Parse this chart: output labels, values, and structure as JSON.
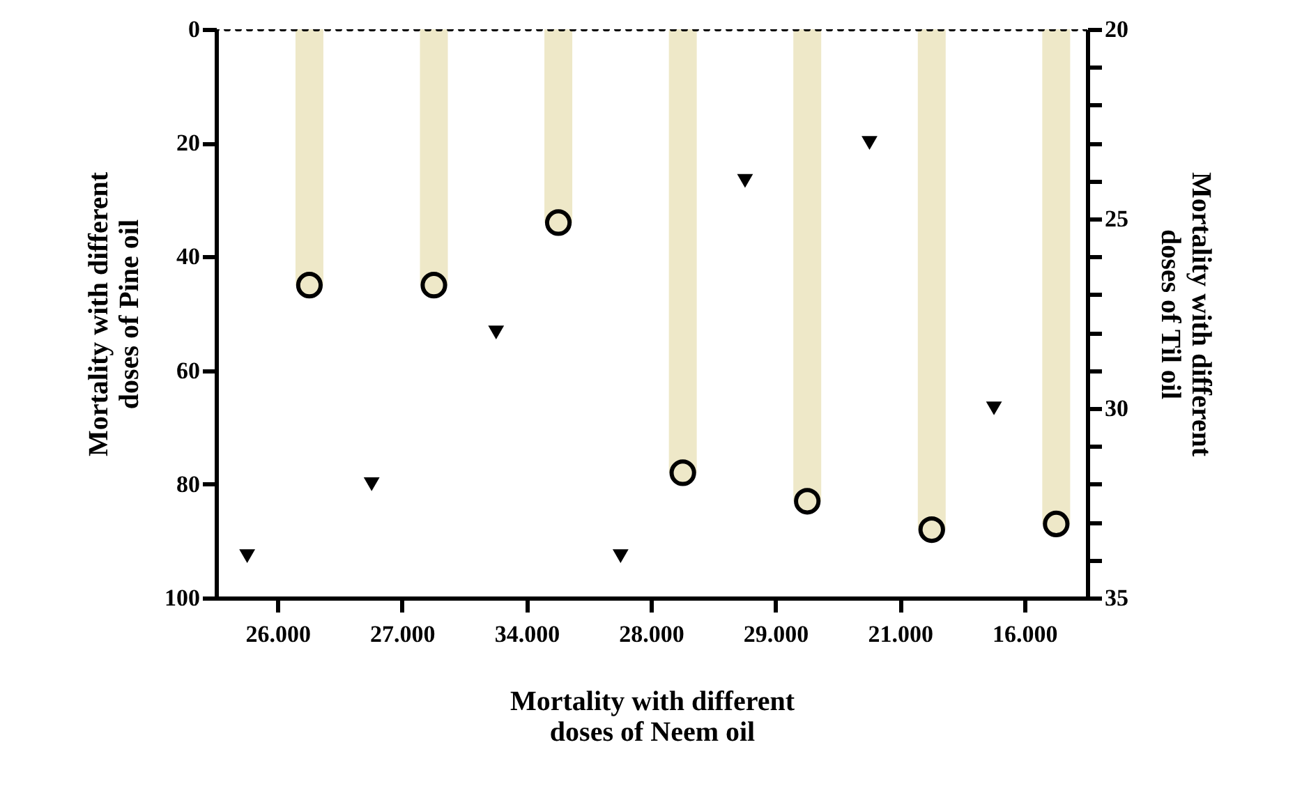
{
  "chart_data": {
    "type": "lollipop",
    "xlabel": "Mortality with different doses of Neem oil",
    "ylabel": "Mortality with different doses of Pine oil",
    "y2label": "Mortality with different doses of Til oil",
    "categories": [
      "26.000",
      "27.000",
      "34.000",
      "28.000",
      "29.000",
      "21.000",
      "16.000"
    ],
    "ylim": [
      100,
      0
    ],
    "yticks": [
      0,
      20,
      40,
      60,
      80,
      100
    ],
    "y2lim": [
      35,
      20
    ],
    "y2ticks": [
      20,
      {
        "value": 21,
        "label": null
      },
      {
        "value": 22,
        "label": null
      },
      {
        "value": 23,
        "label": null
      },
      {
        "value": 24,
        "label": null
      },
      25,
      {
        "value": 26,
        "label": null
      },
      {
        "value": 27,
        "label": null
      },
      {
        "value": 28,
        "label": null
      },
      {
        "value": 29,
        "label": null
      },
      30,
      {
        "value": 31,
        "label": null
      },
      {
        "value": 32,
        "label": null
      },
      {
        "value": 33,
        "label": null
      },
      {
        "value": 34,
        "label": null
      },
      35
    ],
    "series": [
      {
        "type": "scatter",
        "axis": "y2",
        "color": "#000000",
        "marker": "triangle",
        "values": [
          33.9,
          32.0,
          28.0,
          33.9,
          24.0,
          23.0,
          30.0
        ]
      },
      {
        "color": "#eee8c8",
        "marker": "circle",
        "values": [
          45,
          45,
          34,
          78,
          83,
          88,
          87
        ]
      }
    ],
    "ref_lines": [
      {
        "axis": "y",
        "value": 0,
        "line_style": "dotted"
      }
    ]
  }
}
